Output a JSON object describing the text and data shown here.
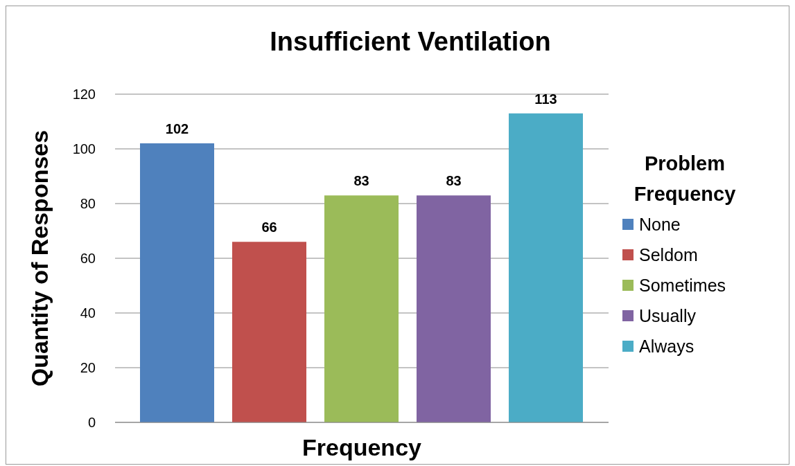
{
  "chart_data": {
    "type": "bar",
    "title": "Insufficient Ventilation",
    "xlabel": "Frequency",
    "ylabel": "Quantity of Responses",
    "legend_title": "Problem Frequency",
    "categories": [
      null
    ],
    "series": [
      {
        "name": "None",
        "color": "#4f81bd",
        "values": [
          102
        ]
      },
      {
        "name": "Seldom",
        "color": "#c0504d",
        "values": [
          66
        ]
      },
      {
        "name": "Sometimes",
        "color": "#9bbb59",
        "values": [
          83
        ]
      },
      {
        "name": "Usually",
        "color": "#8064a2",
        "values": [
          83
        ]
      },
      {
        "name": "Always",
        "color": "#4bacc6",
        "values": [
          113
        ]
      }
    ],
    "ylim": [
      0,
      120
    ],
    "yticks": [
      0,
      20,
      40,
      60,
      80,
      100,
      120
    ],
    "grid": "y",
    "legend": "right",
    "data_labels": true
  }
}
